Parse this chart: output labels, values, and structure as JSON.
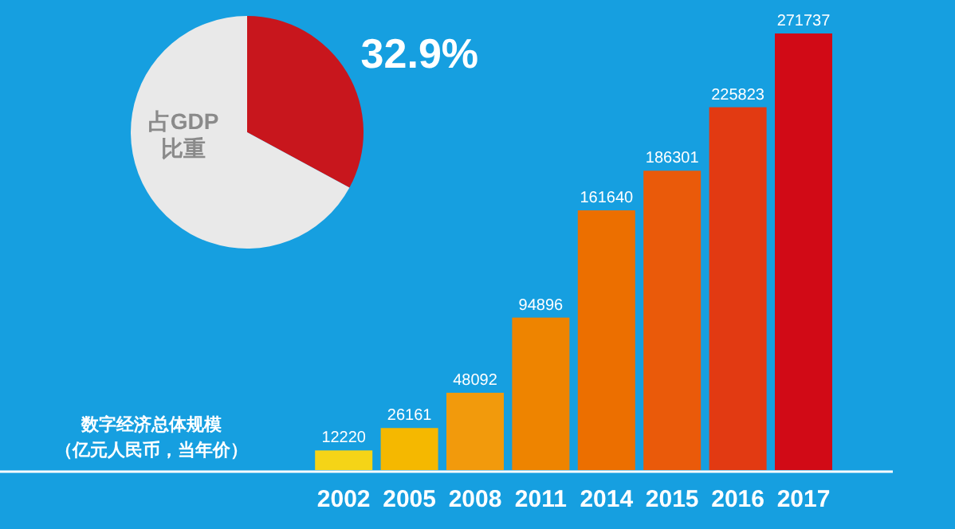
{
  "chart_data": [
    {
      "type": "pie",
      "title": "占GDP比重",
      "categories": [
        null,
        null
      ],
      "values": [
        32.9,
        67.1
      ],
      "colors": [
        "#c8161d",
        "#e9e9e9"
      ],
      "value_labels": [
        "32.9%",
        null
      ]
    },
    {
      "type": "bar",
      "title": "数字经济总体规模",
      "subtitle": "（亿元人民币，当年价）",
      "categories": [
        "2002",
        "2005",
        "2008",
        "2011",
        "2014",
        "2015",
        "2016",
        "2017"
      ],
      "values": [
        12220,
        26161,
        48092,
        94896,
        161640,
        186301,
        225823,
        271737
      ],
      "colors": [
        "#f5d417",
        "#f5b800",
        "#f29a0c",
        "#ee8400",
        "#ec6f00",
        "#ea5a0a",
        "#e23a12",
        "#d10a16"
      ],
      "tick_labels": "x",
      "data_labels": true
    }
  ]
}
